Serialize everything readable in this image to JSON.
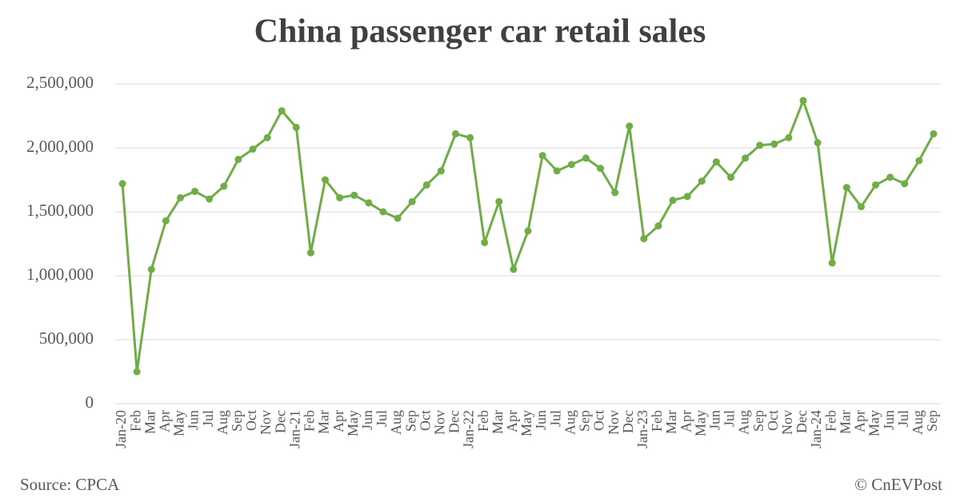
{
  "chart_data": {
    "type": "line",
    "title": "China passenger car retail sales",
    "categories": [
      "Jan-20",
      "Feb",
      "Mar",
      "Apr",
      "May",
      "Jun",
      "Jul",
      "Aug",
      "Sep",
      "Oct",
      "Nov",
      "Dec",
      "Jan-21",
      "Feb",
      "Mar",
      "Apr",
      "May",
      "Jun",
      "Jul",
      "Aug",
      "Sep",
      "Oct",
      "Nov",
      "Dec",
      "Jan-22",
      "Feb",
      "Mar",
      "Apr",
      "May",
      "Jun",
      "Jul",
      "Aug",
      "Sep",
      "Oct",
      "Nov",
      "Dec",
      "Jan-23",
      "Feb",
      "Mar",
      "Apr",
      "May",
      "Jun",
      "Jul",
      "Aug",
      "Sep",
      "Oct",
      "Nov",
      "Dec",
      "Jan-24",
      "Feb",
      "Mar",
      "Apr",
      "May",
      "Jun",
      "Jul",
      "Aug",
      "Sep"
    ],
    "values": [
      1720000,
      250000,
      1050000,
      1430000,
      1610000,
      1660000,
      1600000,
      1700000,
      1910000,
      1990000,
      2080000,
      2290000,
      2160000,
      1180000,
      1750000,
      1610000,
      1630000,
      1570000,
      1500000,
      1450000,
      1580000,
      1710000,
      1820000,
      2110000,
      2080000,
      1260000,
      1580000,
      1050000,
      1350000,
      1940000,
      1820000,
      1870000,
      1920000,
      1840000,
      1650000,
      2170000,
      1290000,
      1390000,
      1590000,
      1620000,
      1740000,
      1890000,
      1770000,
      1920000,
      2020000,
      2030000,
      2080000,
      2370000,
      2040000,
      1100000,
      1690000,
      1540000,
      1710000,
      1770000,
      1720000,
      1900000,
      2110000
    ],
    "color": "#70ad47",
    "ylim": [
      0,
      2500000
    ],
    "yticks": [
      0,
      {
        "value": 500000,
        "label": "500,000"
      },
      {
        "value": 1000000,
        "label": "1,000,000"
      },
      {
        "value": 1500000,
        "label": "1,500,000"
      },
      {
        "value": 2000000,
        "label": "2,000,000"
      },
      {
        "value": 2500000,
        "label": "2,500,000"
      }
    ],
    "grid": true,
    "source": "Source: CPCA",
    "credit": "© CnEVPost"
  }
}
